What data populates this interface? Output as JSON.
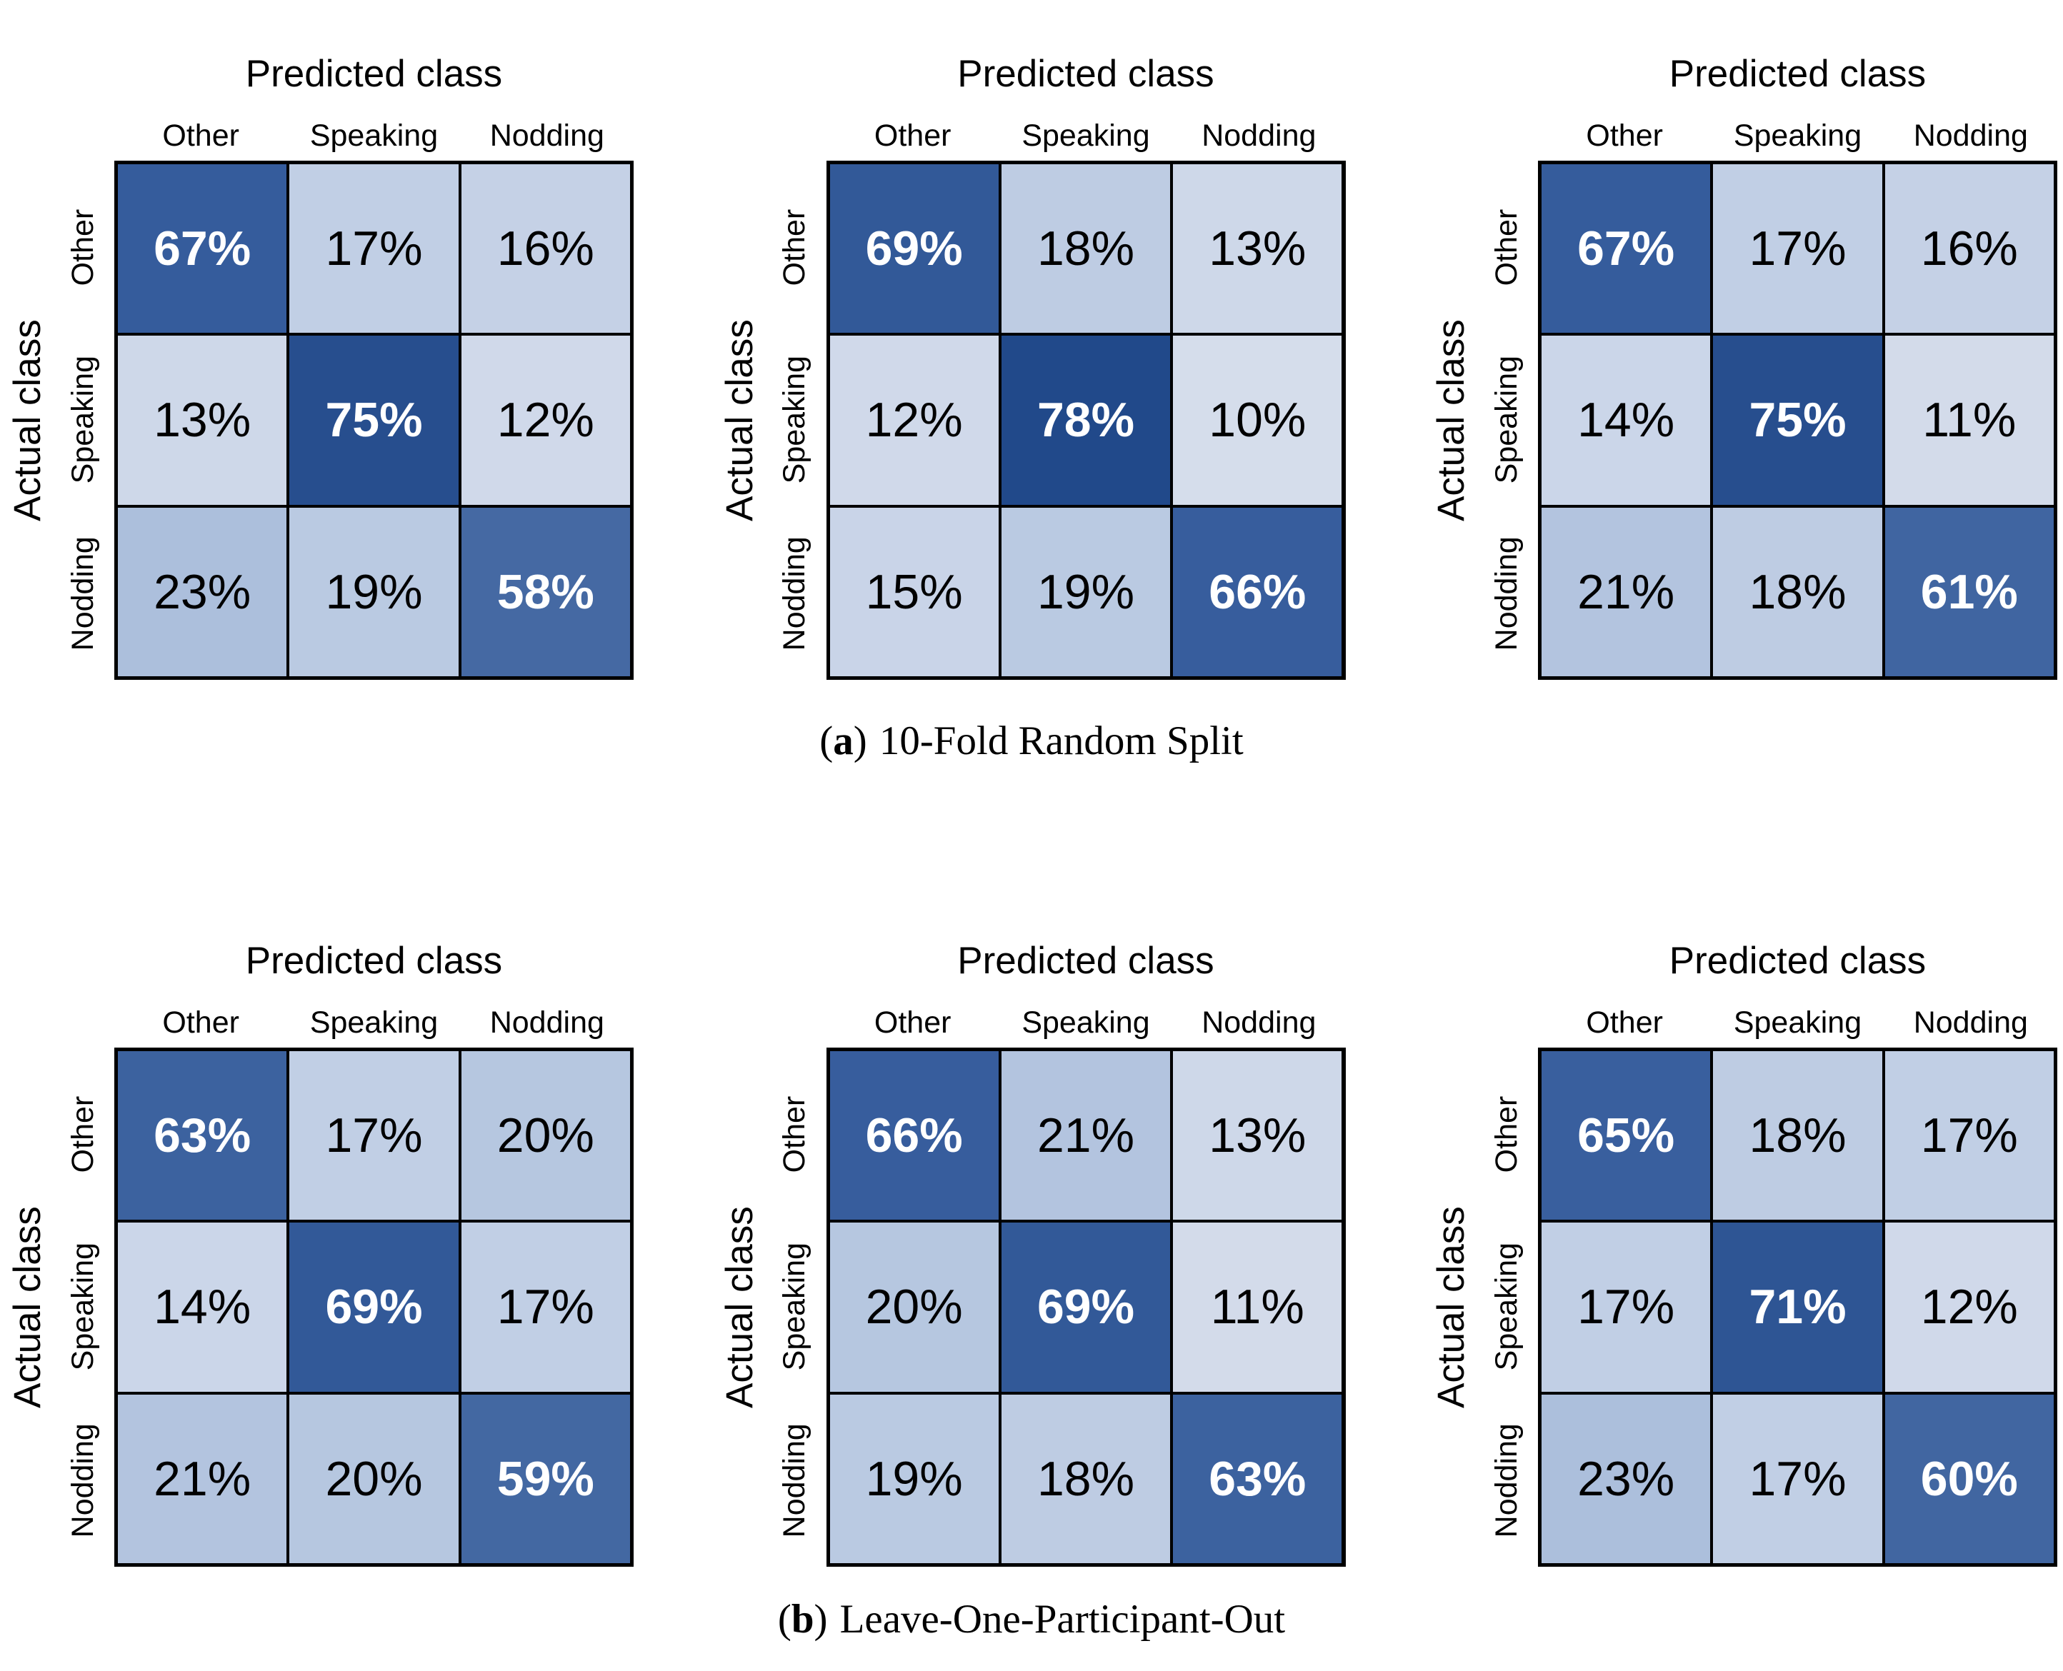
{
  "figure": {
    "percent_suffix": "%",
    "x_axis_title": "Predicted class",
    "y_axis_title": "Actual class",
    "classes": [
      "Other",
      "Speaking",
      "Nodding"
    ]
  },
  "captions": [
    {
      "open": "(",
      "letter": "a",
      "close": ")",
      "label": "10-Fold Random Split"
    },
    {
      "open": "(",
      "letter": "b",
      "close": ")",
      "label": "Leave-One-Participant-Out"
    }
  ],
  "style": {
    "page_bg": "#ffffff",
    "grid_line_color": "#000000",
    "offdiag_text_color": "#000000",
    "diag_text_color": "#ffffff",
    "color_stops": [
      [
        10,
        "#D5DDEB"
      ],
      [
        15,
        "#C9D4E8"
      ],
      [
        20,
        "#B6C7E0"
      ],
      [
        25,
        "#A5BAD9"
      ],
      [
        58,
        "#4569A3"
      ],
      [
        67,
        "#355C9C"
      ],
      [
        71,
        "#2E5594"
      ],
      [
        78,
        "#21498A"
      ]
    ]
  },
  "chart_data": [
    {
      "type": "heatmap",
      "group": "a",
      "split": "10-Fold Random Split",
      "x_axis_title": "Predicted class",
      "y_axis_title": "Actual class",
      "x_categories": [
        "Other",
        "Speaking",
        "Nodding"
      ],
      "y_categories": [
        "Other",
        "Speaking",
        "Nodding"
      ],
      "values_percent": [
        [
          67,
          17,
          16
        ],
        [
          13,
          75,
          12
        ],
        [
          23,
          19,
          58
        ]
      ]
    },
    {
      "type": "heatmap",
      "group": "a",
      "split": "10-Fold Random Split",
      "x_axis_title": "Predicted class",
      "y_axis_title": "Actual class",
      "x_categories": [
        "Other",
        "Speaking",
        "Nodding"
      ],
      "y_categories": [
        "Other",
        "Speaking",
        "Nodding"
      ],
      "values_percent": [
        [
          69,
          18,
          13
        ],
        [
          12,
          78,
          10
        ],
        [
          15,
          19,
          66
        ]
      ]
    },
    {
      "type": "heatmap",
      "group": "a",
      "split": "10-Fold Random Split",
      "x_axis_title": "Predicted class",
      "y_axis_title": "Actual class",
      "x_categories": [
        "Other",
        "Speaking",
        "Nodding"
      ],
      "y_categories": [
        "Other",
        "Speaking",
        "Nodding"
      ],
      "values_percent": [
        [
          67,
          17,
          16
        ],
        [
          14,
          75,
          11
        ],
        [
          21,
          18,
          61
        ]
      ]
    },
    {
      "type": "heatmap",
      "group": "b",
      "split": "Leave-One-Participant-Out",
      "x_axis_title": "Predicted class",
      "y_axis_title": "Actual class",
      "x_categories": [
        "Other",
        "Speaking",
        "Nodding"
      ],
      "y_categories": [
        "Other",
        "Speaking",
        "Nodding"
      ],
      "values_percent": [
        [
          63,
          17,
          20
        ],
        [
          14,
          69,
          17
        ],
        [
          21,
          20,
          59
        ]
      ]
    },
    {
      "type": "heatmap",
      "group": "b",
      "split": "Leave-One-Participant-Out",
      "x_axis_title": "Predicted class",
      "y_axis_title": "Actual class",
      "x_categories": [
        "Other",
        "Speaking",
        "Nodding"
      ],
      "y_categories": [
        "Other",
        "Speaking",
        "Nodding"
      ],
      "values_percent": [
        [
          66,
          21,
          13
        ],
        [
          20,
          69,
          11
        ],
        [
          19,
          18,
          63
        ]
      ]
    },
    {
      "type": "heatmap",
      "group": "b",
      "split": "Leave-One-Participant-Out",
      "x_axis_title": "Predicted class",
      "y_axis_title": "Actual class",
      "x_categories": [
        "Other",
        "Speaking",
        "Nodding"
      ],
      "y_categories": [
        "Other",
        "Speaking",
        "Nodding"
      ],
      "values_percent": [
        [
          65,
          18,
          17
        ],
        [
          17,
          71,
          12
        ],
        [
          23,
          17,
          60
        ]
      ]
    }
  ]
}
